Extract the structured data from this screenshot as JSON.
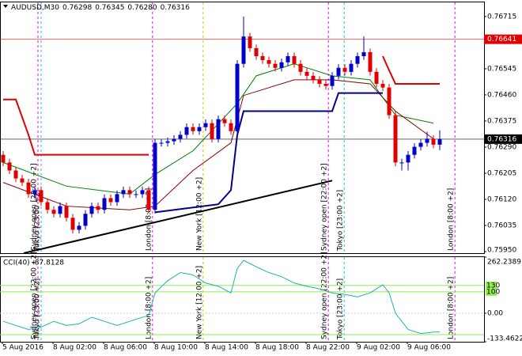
{
  "chart_data": [
    {
      "type": "candlestick",
      "title": "AUDUSD,M30",
      "title_values": [
        "0.76298",
        "0.76345",
        "0.76280",
        "0.76316"
      ],
      "up_color": "#0000cc",
      "down_color": "#e00000",
      "open": [
        0.76265,
        0.7624,
        0.76214,
        0.76188,
        0.76175,
        0.76137,
        0.7615,
        0.76111,
        0.76086,
        0.76073,
        0.76098,
        0.7606,
        0.76021,
        0.76034,
        0.76073,
        0.76098,
        0.76086,
        0.76124,
        0.76111,
        0.76137,
        0.7615,
        0.76137,
        0.76137,
        0.7615,
        0.76086,
        0.76304,
        0.76304,
        0.76309,
        0.76317,
        0.7633,
        0.76355,
        0.76342,
        0.76355,
        0.76368,
        0.76317,
        0.76381,
        0.76368,
        0.76342,
        0.76561,
        0.7665,
        0.76612,
        0.76586,
        0.76573,
        0.76561,
        0.76548,
        0.76566,
        0.76586,
        0.76561,
        0.76535,
        0.76522,
        0.76509,
        0.76496,
        0.76489,
        0.76522,
        0.76548,
        0.76535,
        0.76561,
        0.76586,
        0.76599,
        0.76535,
        0.76496,
        0.76484,
        0.76394,
        0.7624,
        0.7624,
        0.76265,
        0.76291,
        0.76304,
        0.76317,
        0.76298
      ],
      "high": [
        0.76277,
        0.76252,
        0.76226,
        0.762,
        0.76187,
        0.76162,
        0.76162,
        0.76123,
        0.76098,
        0.7611,
        0.7611,
        0.76072,
        0.76046,
        0.76085,
        0.7611,
        0.7611,
        0.76136,
        0.76136,
        0.76149,
        0.76162,
        0.76162,
        0.76149,
        0.76162,
        0.76162,
        0.76316,
        0.76316,
        0.76321,
        0.76329,
        0.76342,
        0.76367,
        0.76367,
        0.76367,
        0.7638,
        0.7638,
        0.76393,
        0.76393,
        0.7638,
        0.76573,
        0.76715,
        0.76662,
        0.76624,
        0.76598,
        0.76585,
        0.76573,
        0.76578,
        0.76598,
        0.76598,
        0.76573,
        0.76547,
        0.76534,
        0.76521,
        0.76508,
        0.76534,
        0.7656,
        0.7656,
        0.76573,
        0.76598,
        0.7665,
        0.76611,
        0.76547,
        0.76508,
        0.76496,
        0.76406,
        0.76252,
        0.76277,
        0.76303,
        0.76316,
        0.7634,
        0.76329,
        0.76345
      ],
      "low": [
        0.76228,
        0.76202,
        0.76176,
        0.76163,
        0.76125,
        0.76125,
        0.76099,
        0.76074,
        0.76061,
        0.76061,
        0.76048,
        0.76009,
        0.76009,
        0.76022,
        0.76061,
        0.76074,
        0.76074,
        0.76099,
        0.76099,
        0.76125,
        0.76125,
        0.76125,
        0.76125,
        0.76074,
        0.76074,
        0.76292,
        0.76292,
        0.76297,
        0.76305,
        0.76318,
        0.7633,
        0.7633,
        0.76343,
        0.76305,
        0.76305,
        0.76356,
        0.7633,
        0.7633,
        0.76549,
        0.766,
        0.76574,
        0.76561,
        0.76549,
        0.76536,
        0.76536,
        0.76554,
        0.76549,
        0.76523,
        0.7651,
        0.76497,
        0.76484,
        0.76477,
        0.76477,
        0.7651,
        0.76523,
        0.76523,
        0.76549,
        0.76574,
        0.76523,
        0.76484,
        0.76472,
        0.76382,
        0.76228,
        0.76214,
        0.76214,
        0.76253,
        0.76279,
        0.76292,
        0.76286,
        0.7628
      ],
      "close": [
        0.7624,
        0.76214,
        0.76188,
        0.76175,
        0.76137,
        0.7615,
        0.76111,
        0.76086,
        0.76073,
        0.76098,
        0.7606,
        0.76021,
        0.76034,
        0.76073,
        0.76098,
        0.76086,
        0.76124,
        0.76111,
        0.76137,
        0.7615,
        0.76137,
        0.76137,
        0.7615,
        0.76086,
        0.76304,
        0.76304,
        0.76309,
        0.76317,
        0.7633,
        0.76355,
        0.76342,
        0.76355,
        0.76368,
        0.76317,
        0.76381,
        0.76368,
        0.76342,
        0.76561,
        0.7665,
        0.76612,
        0.76586,
        0.76573,
        0.76561,
        0.76548,
        0.76566,
        0.76586,
        0.76561,
        0.76535,
        0.76522,
        0.76509,
        0.76496,
        0.76489,
        0.76522,
        0.76548,
        0.76535,
        0.76561,
        0.76586,
        0.76599,
        0.76535,
        0.76496,
        0.76484,
        0.76394,
        0.7624,
        0.7624,
        0.76265,
        0.76291,
        0.76304,
        0.76317,
        0.76298,
        0.76316
      ],
      "lines": [
        {
          "color": "#008000",
          "width": 1,
          "x": [
            0,
            10,
            20,
            24,
            30,
            37,
            40,
            46,
            52,
            58,
            62,
            68
          ],
          "values": [
            0.7624,
            0.76163,
            0.76137,
            0.76201,
            0.76278,
            0.76432,
            0.76522,
            0.76561,
            0.76522,
            0.76509,
            0.76394,
            0.76368
          ]
        },
        {
          "color": "#8b0000",
          "width": 1,
          "x": [
            0,
            10,
            20,
            24,
            30,
            36,
            38,
            46,
            52,
            58,
            62,
            68
          ],
          "values": [
            0.76175,
            0.76098,
            0.76086,
            0.76098,
            0.76214,
            0.76304,
            0.76458,
            0.76509,
            0.76509,
            0.76496,
            0.76407,
            0.76317
          ]
        },
        {
          "color": "#e00000",
          "width": 2,
          "x": [
            0,
            2,
            4,
            5,
            23,
            40,
            60,
            61,
            62,
            69
          ],
          "values": [
            0.76445,
            0.76445,
            0.7633,
            0.76265,
            0.76265,
            null,
            0.76586,
            0.7654,
            0.76496,
            0.76496
          ]
        },
        {
          "color": "#00008b",
          "width": 2,
          "x": [
            24,
            34,
            36,
            37,
            38,
            52,
            53,
            60
          ],
          "values": [
            0.76078,
            0.76104,
            0.7615,
            0.7633,
            0.76407,
            0.76407,
            0.76466,
            0.76466
          ]
        },
        {
          "color": "#000000",
          "width": 2,
          "x": [
            3.25,
            52
          ],
          "values": [
            0.75945,
            0.76181
          ]
        }
      ],
      "price_lines": [
        {
          "value": 0.76641,
          "label": "0.76641",
          "color": "#e00000"
        },
        {
          "value": 0.76316,
          "label": "0.76316",
          "color": "#000000"
        }
      ],
      "ylim": [
        0.75945,
        0.76761
      ],
      "yticks": [
        {
          "value": 0.76715,
          "label": "0.76715"
        },
        {
          "value": 0.76545,
          "label": "0.76545"
        },
        {
          "value": 0.7646,
          "label": "0.76460"
        },
        {
          "value": 0.76375,
          "label": "0.76375"
        },
        {
          "value": 0.7629,
          "label": "0.76290"
        },
        {
          "value": 0.76205,
          "label": "0.76205"
        },
        {
          "value": 0.7612,
          "label": "0.76120"
        },
        {
          "value": 0.76035,
          "label": "0.76035"
        },
        {
          "value": 0.7595,
          "label": "0.75950"
        }
      ],
      "sessions": [
        {
          "label": "Sydney open [22:00 +2]",
          "x": 5.5,
          "color": "#ff00ff"
        },
        {
          "label": "Tokyo [23:00 +2]",
          "x": 6,
          "color": "#00cccc"
        },
        {
          "label": "London [8:00 +2]",
          "x": 23.6,
          "color": "#ff00ff"
        },
        {
          "label": "New York [12:00 +2]",
          "x": 31.6,
          "color": "#e6c200"
        },
        {
          "label": "Sydney open [22:00 +2]",
          "x": 51.4,
          "color": "#ff00ff"
        },
        {
          "label": "Tokyo [23:00 +2]",
          "x": 53.9,
          "color": "#00cccc"
        },
        {
          "label": "London [8:00 +2]",
          "x": 71.4,
          "color": "#ff00ff"
        }
      ]
    },
    {
      "type": "line",
      "title": "CCI(40) -87.8128",
      "series": [
        {
          "color": "#20b2aa",
          "x": [
            0,
            2,
            4,
            6,
            8,
            10,
            12,
            14,
            16,
            18,
            20,
            22,
            23,
            24,
            26,
            28,
            30,
            32,
            34,
            36,
            37,
            38,
            40,
            42,
            44,
            46,
            48,
            50,
            52,
            54,
            56,
            58,
            60,
            61,
            62,
            64,
            66,
            68,
            69
          ],
          "values": [
            -38,
            -57,
            -76,
            -65,
            -38,
            -57,
            -50,
            -19,
            -38,
            -57,
            -38,
            -19,
            -11,
            95,
            152,
            190,
            179,
            141,
            126,
            95,
            209,
            247,
            217,
            190,
            171,
            141,
            126,
            114,
            95,
            88,
            76,
            95,
            133,
            95,
            0,
            -76,
            -95,
            -88,
            -87.8128
          ]
        }
      ],
      "levels": [
        130,
        100
      ],
      "level_color": "#90ee50",
      "lower_level": -100,
      "ylim": [
        -133.4622,
        262.2389
      ],
      "yticks": [
        {
          "value": 262.2389,
          "label": "262.2389"
        },
        {
          "value": 0,
          "label": "0.00"
        },
        {
          "value": -133.4622,
          "label": "-133.4622"
        }
      ],
      "categories": [
        "5 Aug 2016",
        null,
        null,
        null,
        null,
        null,
        null,
        null,
        "8 Aug 02:00",
        null,
        null,
        null,
        null,
        null,
        null,
        null,
        "8 Aug 06:00",
        null,
        null,
        null,
        null,
        null,
        null,
        null,
        "8 Aug 10:00",
        null,
        null,
        null,
        null,
        null,
        null,
        null,
        "8 Aug 14:00",
        null,
        null,
        null,
        null,
        null,
        null,
        null,
        "8 Aug 18:00",
        null,
        null,
        null,
        null,
        null,
        null,
        null,
        "8 Aug 22:00",
        null,
        null,
        null,
        null,
        null,
        null,
        null,
        "9 Aug 02:00",
        null,
        null,
        null,
        null,
        null,
        null,
        null,
        "9 Aug 06:00",
        null,
        null,
        null,
        null,
        null
      ],
      "sessions": [
        {
          "label": "Sydney open [22:00 +2]",
          "x": 5.5,
          "color": "#ff00ff"
        },
        {
          "label": "Tokyo [23:00 +2]",
          "x": 6,
          "color": "#00cccc"
        },
        {
          "label": "London [8:00 +2]",
          "x": 23.6,
          "color": "#ff00ff"
        },
        {
          "label": "New York [12:00 +2]",
          "x": 31.6,
          "color": "#e6c200"
        },
        {
          "label": "Sydney open [22:00 +2]",
          "x": 51.4,
          "color": "#ff00ff"
        },
        {
          "label": "Tokyo [23:00 +2]",
          "x": 53.9,
          "color": "#00cccc"
        },
        {
          "label": "London [8:00 +2]",
          "x": 71.4,
          "color": "#ff00ff"
        }
      ]
    }
  ]
}
